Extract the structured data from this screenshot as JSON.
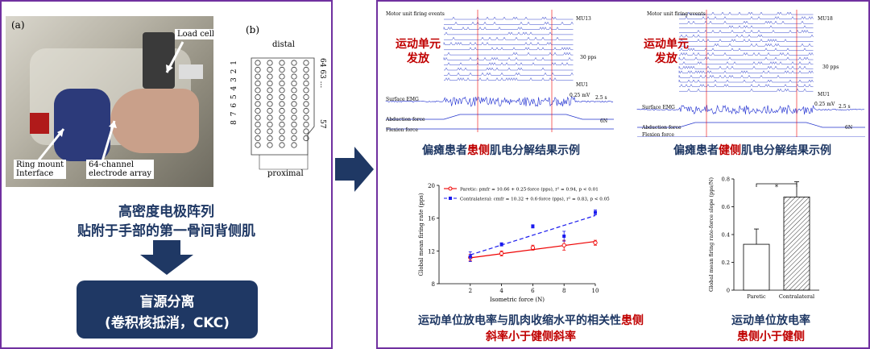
{
  "left": {
    "label_a": "(a)",
    "label_b": "(b)",
    "photo_labels": {
      "load_cell": "Load cell",
      "ring_mount": "Ring mount\nInterface",
      "electrode_array": "64-channel\nelectrode array"
    },
    "grid": {
      "distal": "distal",
      "proximal": "proximal",
      "rows": "8 7 6 5 4 3 2 1",
      "side_top": "64 63 ...",
      "side_bottom": "57"
    },
    "caption_line1": "高密度电极阵列",
    "caption_line2": "贴附于手部的第一骨间背侧肌",
    "bss_line1": "盲源分离",
    "bss_line2": "(卷积核抵消，CKC)"
  },
  "right": {
    "paretic_emg": {
      "header": "Motor unit firing events",
      "mu_top": "MU13",
      "mu_bottom": "MU1",
      "pps": "30 pps",
      "mv": "0.25 mV",
      "sec": "2.5 s",
      "surface": "Surface EMG",
      "abduction": "Abduction force",
      "flexion": "Flexion force",
      "force": "6N",
      "tag_line1": "运动单元",
      "tag_line2": "发放",
      "caption_pre": "偏瘫患者",
      "caption_red": "患侧",
      "caption_post": "肌电分解结果示例"
    },
    "contra_emg": {
      "header": "Motor unit firing events",
      "mu_top": "MU18",
      "mu_bottom": "MU1",
      "pps": "30 pps",
      "mv": "0.25 mV",
      "sec": "2.5 s",
      "surface": "Surface EMG",
      "abduction": "Abduction force",
      "flexion": "Flexion force",
      "force": "6N",
      "tag_line1": "运动单元",
      "tag_line2": "发放",
      "caption_pre": "偏瘫患者",
      "caption_red": "健侧",
      "caption_post": "肌电分解结果示例"
    },
    "caption_corr_pre": "运动单位放电率与肌肉收缩水平的相关性",
    "caption_corr_red1": "患侧",
    "caption_corr_line2": "斜率小于健侧斜率",
    "caption_slope_line1": "运动单位放电率",
    "caption_slope_line2": "患侧小于健侧"
  },
  "chart_data": [
    {
      "type": "line",
      "xlabel": "Isometric force (N)",
      "ylabel": "Global mean firing rate (pps)",
      "xlim": [
        0,
        10
      ],
      "ylim": [
        8,
        20
      ],
      "xticks": [
        2,
        4,
        6,
        8,
        10
      ],
      "yticks": [
        8,
        12,
        16,
        20
      ],
      "x": [
        2,
        4,
        6,
        8,
        10
      ],
      "series": [
        {
          "name": "Paretic: pmfr = 10.66 + 0.25·force (pps), r² = 0.94, p < 0.01",
          "color": "#ee0000",
          "values": [
            11.2,
            11.7,
            12.4,
            12.7,
            13.0
          ],
          "errors": [
            0.4,
            0.3,
            0.3,
            0.6,
            0.3
          ],
          "fit": [
            10.66,
            0.25
          ]
        },
        {
          "name": "Contralateral: cmfr = 10.32 + 0.6·force (pps), r² = 0.83, p < 0.05",
          "color": "#1a1aee",
          "values": [
            11.3,
            12.8,
            15.0,
            13.8,
            16.7
          ],
          "errors": [
            0.6,
            0.2,
            0.2,
            0.6,
            0.3
          ],
          "fit": [
            10.32,
            0.6
          ]
        }
      ],
      "legend": "top-left"
    },
    {
      "type": "bar",
      "categories": [
        "Paretic",
        "Contralateral"
      ],
      "values": [
        0.33,
        0.67
      ],
      "errors": [
        0.11,
        0.11
      ],
      "ylabel": "Global mean firing rate-force slope (pps/N)",
      "ylim": [
        0,
        0.8
      ],
      "yticks": [
        0,
        0.2,
        0.4,
        0.6,
        0.8
      ],
      "annotation": "*",
      "colors": [
        "#ffffff",
        "hatched"
      ]
    }
  ]
}
